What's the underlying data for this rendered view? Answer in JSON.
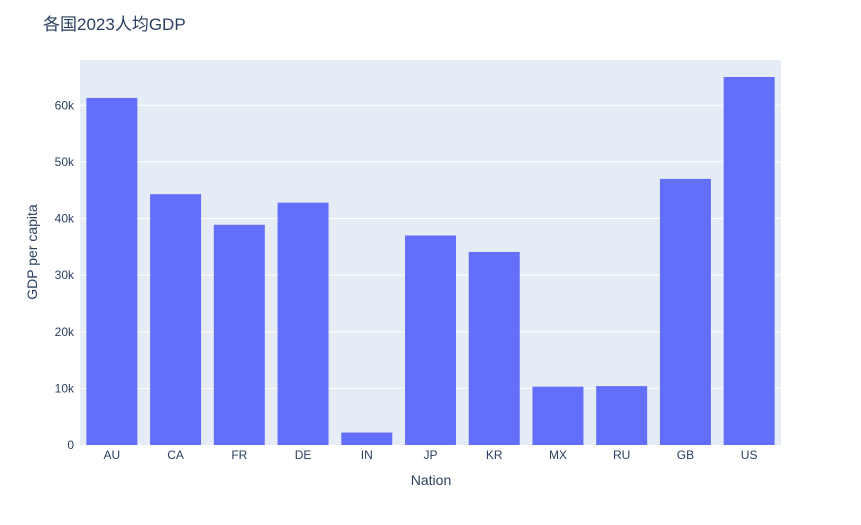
{
  "chart_data": {
    "type": "bar",
    "title": "各国2023人均GDP",
    "xlabel": "Nation",
    "ylabel": "GDP per capita",
    "categories": [
      "AU",
      "CA",
      "FR",
      "DE",
      "IN",
      "JP",
      "KR",
      "MX",
      "RU",
      "GB",
      "US"
    ],
    "values": [
      61300,
      44300,
      38900,
      42800,
      2200,
      37000,
      34100,
      10300,
      10400,
      47000,
      65000
    ],
    "ylim": [
      0,
      68000
    ],
    "yticks": [
      0,
      10000,
      20000,
      30000,
      40000,
      50000,
      60000
    ],
    "ytick_labels": [
      "0",
      "10k",
      "20k",
      "30k",
      "40k",
      "50k",
      "60k"
    ],
    "grid": true,
    "bar_color": "#636efa",
    "plot_background": "#e5ecf6"
  }
}
